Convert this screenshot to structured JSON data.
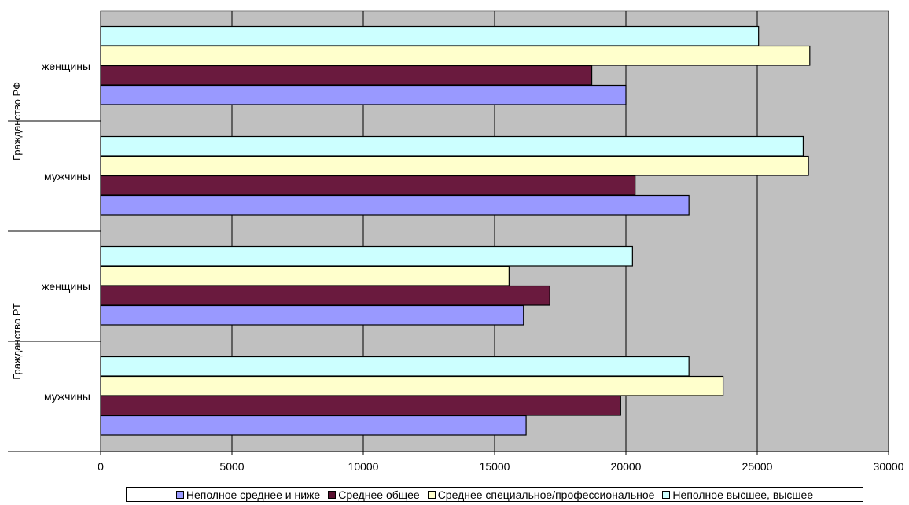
{
  "chart_data": {
    "type": "bar",
    "orientation": "horizontal",
    "title": "",
    "xlabel": "",
    "ylabel": "",
    "xlim": [
      0,
      30000
    ],
    "xticks": [
      "0",
      "5000",
      "10000",
      "15000",
      "20000",
      "25000",
      "30000"
    ],
    "grid": "vertical",
    "legend_position": "bottom",
    "groups": [
      {
        "name": "Гражданство РФ",
        "categories": [
          "женщины",
          "мужчины"
        ]
      },
      {
        "name": "Гражданство РТ",
        "categories": [
          "женщины",
          "мужчины"
        ]
      }
    ],
    "series": [
      {
        "name": "Неполное среднее и ниже",
        "color": "#9999ff",
        "values": [
          20000,
          22400,
          16100,
          16200
        ]
      },
      {
        "name": "Среднее общее",
        "color": "#993366",
        "values": [
          18700,
          20350,
          17100,
          19800
        ]
      },
      {
        "name": "Среднее специальное/профессиональное",
        "color": "#ffffcc",
        "values": [
          27000,
          26950,
          15550,
          23700
        ]
      },
      {
        "name": "Неполное высшее, высшее",
        "color": "#ccffff",
        "values": [
          25050,
          26750,
          20250,
          22400
        ]
      }
    ],
    "colors": {
      "plot_background": "#c0c0c0",
      "gridline": "#000000"
    }
  }
}
